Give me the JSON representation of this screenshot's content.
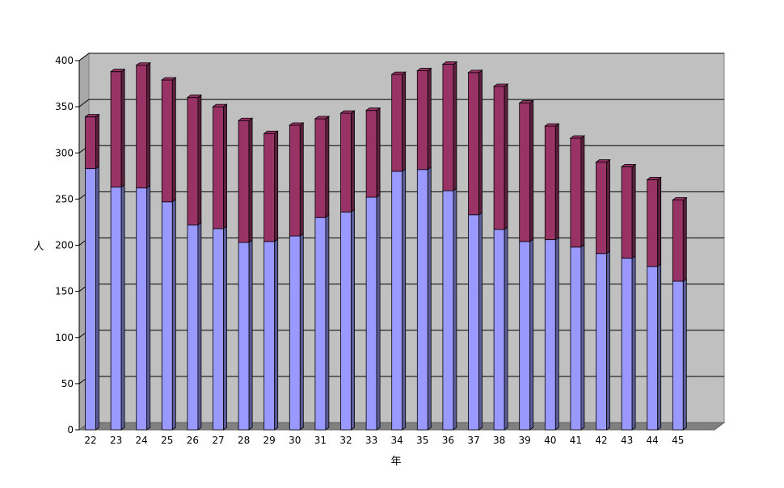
{
  "chart_data": {
    "type": "bar",
    "stacked": true,
    "three_d": true,
    "title": "",
    "xlabel": "年",
    "ylabel": "人",
    "ylim": [
      0,
      400
    ],
    "yticks": [
      0,
      50,
      100,
      150,
      200,
      250,
      300,
      350,
      400
    ],
    "grid": true,
    "legend": "none",
    "categories": [
      "22",
      "23",
      "24",
      "25",
      "26",
      "27",
      "28",
      "29",
      "30",
      "31",
      "32",
      "33",
      "34",
      "35",
      "36",
      "37",
      "38",
      "39",
      "40",
      "41",
      "42",
      "43",
      "44",
      "45"
    ],
    "series": [
      {
        "color": "#9999ff",
        "values": [
          283,
          263,
          262,
          247,
          222,
          218,
          203,
          204,
          210,
          230,
          236,
          252,
          280,
          282,
          259,
          233,
          217,
          204,
          206,
          198,
          191,
          186,
          177,
          161
        ]
      },
      {
        "color": "#993366",
        "values": [
          56,
          125,
          133,
          132,
          138,
          132,
          132,
          117,
          120,
          107,
          107,
          94,
          105,
          107,
          137,
          154,
          155,
          150,
          123,
          118,
          99,
          99,
          94,
          88
        ]
      }
    ]
  },
  "colors": {
    "plot_background": "#c0c0c0",
    "floor": "#808080",
    "gridline": "#000000"
  }
}
